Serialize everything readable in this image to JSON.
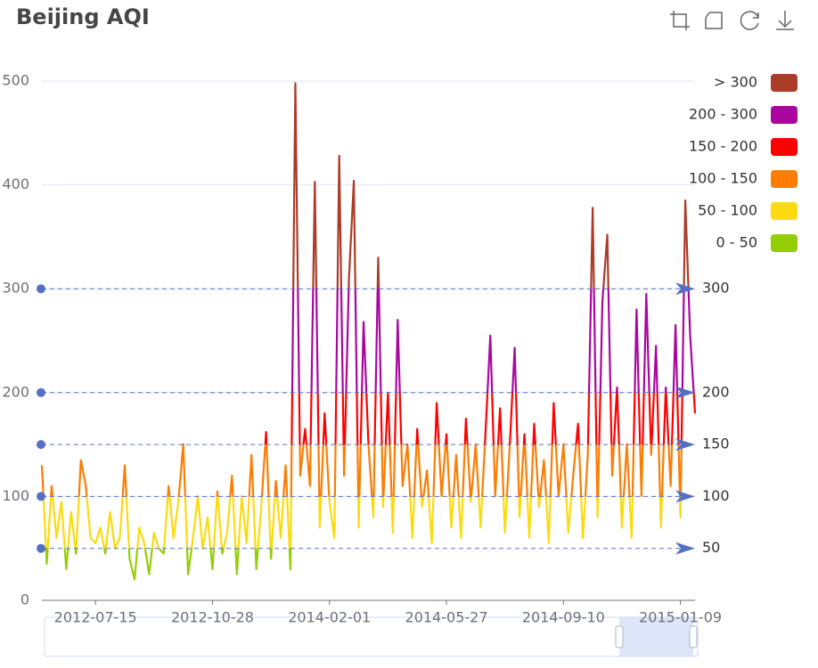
{
  "chart_data": {
    "type": "line",
    "title": "Beijing AQI",
    "categories": [
      null,
      null,
      null,
      null,
      null,
      null,
      null,
      null,
      null,
      null,
      null,
      "2012-07-15",
      null,
      null,
      null,
      null,
      null,
      null,
      null,
      null,
      null,
      null,
      null,
      null,
      null,
      null,
      null,
      null,
      null,
      null,
      null,
      null,
      null,
      null,
      null,
      "2012-10-28",
      null,
      null,
      null,
      null,
      null,
      null,
      null,
      null,
      null,
      null,
      null,
      null,
      null,
      null,
      null,
      null,
      null,
      null,
      null,
      null,
      null,
      null,
      null,
      "2014-02-01",
      null,
      null,
      null,
      null,
      null,
      null,
      null,
      null,
      null,
      null,
      null,
      null,
      null,
      null,
      null,
      null,
      null,
      null,
      null,
      null,
      null,
      null,
      null,
      "2014-05-27",
      null,
      null,
      null,
      null,
      null,
      null,
      null,
      null,
      null,
      null,
      null,
      null,
      null,
      null,
      null,
      null,
      null,
      null,
      null,
      null,
      null,
      null,
      null,
      "2014-09-10",
      null,
      null,
      null,
      null,
      null,
      null,
      null,
      null,
      null,
      null,
      null,
      null,
      null,
      null,
      null,
      null,
      null,
      null,
      null,
      null,
      null,
      null,
      null,
      "2015-01-09",
      null,
      null,
      null
    ],
    "values": [
      130,
      35,
      110,
      60,
      95,
      30,
      85,
      45,
      135,
      110,
      60,
      55,
      70,
      45,
      85,
      50,
      60,
      130,
      40,
      20,
      70,
      55,
      25,
      65,
      50,
      45,
      110,
      60,
      95,
      150,
      25,
      60,
      100,
      50,
      80,
      30,
      105,
      45,
      65,
      120,
      25,
      100,
      55,
      140,
      30,
      90,
      162,
      40,
      115,
      60,
      130,
      30,
      498,
      120,
      165,
      110,
      403,
      70,
      180,
      95,
      60,
      428,
      120,
      310,
      404,
      70,
      268,
      150,
      80,
      330,
      90,
      200,
      65,
      270,
      110,
      150,
      60,
      165,
      90,
      125,
      55,
      190,
      100,
      160,
      70,
      140,
      60,
      175,
      95,
      150,
      70,
      160,
      255,
      100,
      185,
      65,
      150,
      243,
      80,
      160,
      60,
      170,
      90,
      135,
      55,
      190,
      100,
      150,
      65,
      120,
      170,
      60,
      140,
      378,
      80,
      288,
      352,
      120,
      205,
      70,
      150,
      60,
      280,
      100,
      295,
      140,
      245,
      70,
      205,
      110,
      265,
      80,
      385,
      255,
      180
    ],
    "ylim": [
      0,
      500
    ],
    "yticks": [
      0,
      100,
      200,
      300,
      400,
      500
    ],
    "grid": true,
    "pieces": [
      {
        "label": "> 300",
        "min": 300,
        "color": "#AC3B2A"
      },
      {
        "label": "200 - 300",
        "min": 200,
        "max": 300,
        "color": "#AA069F"
      },
      {
        "label": "150 - 200",
        "min": 150,
        "max": 200,
        "color": "#FD0100"
      },
      {
        "label": "100 - 150",
        "min": 100,
        "max": 150,
        "color": "#FC7D02"
      },
      {
        "label": "50 - 100",
        "min": 50,
        "max": 100,
        "color": "#FBDB0F"
      },
      {
        "label": "0 - 50",
        "min": 0,
        "max": 50,
        "color": "#93CE07"
      }
    ],
    "mark_lines": [
      50,
      100,
      150,
      200,
      300
    ]
  }
}
